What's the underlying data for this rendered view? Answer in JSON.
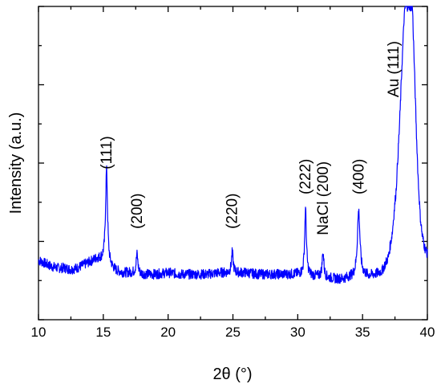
{
  "chart_data": {
    "type": "line",
    "xlabel": "2θ (°)",
    "ylabel": "Intensity (a.u.)",
    "xlim": [
      10,
      40
    ],
    "ylim": [
      0,
      100
    ],
    "xticks": [
      "10",
      "15",
      "20",
      "25",
      "30",
      "35",
      "40"
    ],
    "y_tick_labels": false,
    "grid": false,
    "legend": "none",
    "line_color": "#0000ff",
    "baseline_points": [
      [
        10.0,
        19
      ],
      [
        10.5,
        18
      ],
      [
        11.0,
        17
      ],
      [
        11.5,
        16.5
      ],
      [
        12.0,
        16.5
      ],
      [
        12.5,
        16
      ],
      [
        13.0,
        16.5
      ],
      [
        13.5,
        17.5
      ],
      [
        14.0,
        18.5
      ],
      [
        14.5,
        19.5
      ],
      [
        15.0,
        19
      ],
      [
        15.5,
        17
      ],
      [
        16.0,
        15.5
      ],
      [
        16.5,
        15
      ],
      [
        17.0,
        15
      ],
      [
        17.5,
        15
      ],
      [
        18.0,
        14.5
      ],
      [
        19.0,
        14.5
      ],
      [
        20.0,
        15
      ],
      [
        21.0,
        14.5
      ],
      [
        22.0,
        14.5
      ],
      [
        23.0,
        14.5
      ],
      [
        24.0,
        15
      ],
      [
        25.0,
        15
      ],
      [
        26.0,
        15
      ],
      [
        27.0,
        14.5
      ],
      [
        28.0,
        14.5
      ],
      [
        29.0,
        14.5
      ],
      [
        30.0,
        14.5
      ],
      [
        31.0,
        14
      ],
      [
        32.0,
        13.5
      ],
      [
        33.0,
        13
      ],
      [
        33.5,
        13
      ],
      [
        34.0,
        13.5
      ],
      [
        35.0,
        14
      ],
      [
        35.5,
        14
      ],
      [
        36.0,
        14.5
      ],
      [
        36.5,
        15.5
      ],
      [
        37.0,
        20
      ],
      [
        37.3,
        28
      ],
      [
        37.6,
        42
      ],
      [
        37.85,
        62
      ],
      [
        38.05,
        82
      ],
      [
        38.2,
        96
      ],
      [
        38.3,
        100
      ],
      [
        38.5,
        100
      ],
      [
        38.7,
        100
      ],
      [
        38.85,
        100
      ],
      [
        39.0,
        80
      ],
      [
        39.15,
        60
      ],
      [
        39.3,
        44
      ],
      [
        39.45,
        33
      ],
      [
        39.6,
        27
      ],
      [
        39.8,
        23
      ],
      [
        40.0,
        21
      ]
    ],
    "peaks": [
      {
        "x": 15.25,
        "height": 30,
        "width": 0.09
      },
      {
        "x": 17.6,
        "height": 6,
        "width": 0.08
      },
      {
        "x": 24.95,
        "height": 6.5,
        "width": 0.08
      },
      {
        "x": 30.6,
        "height": 21,
        "width": 0.08
      },
      {
        "x": 31.95,
        "height": 8,
        "width": 0.08
      },
      {
        "x": 34.7,
        "height": 21,
        "width": 0.12
      }
    ],
    "noise_amplitude": 1.6,
    "annotations": [
      {
        "text": "(111)",
        "x": 15.25,
        "y": 48
      },
      {
        "text": "(200)",
        "x": 17.6,
        "y": 29
      },
      {
        "text": "(220)",
        "x": 24.95,
        "y": 29
      },
      {
        "text": "(222)",
        "x": 30.6,
        "y": 40
      },
      {
        "text": "NaCl (200)",
        "x": 31.95,
        "y": 27
      },
      {
        "text": "(400)",
        "x": 34.7,
        "y": 40
      },
      {
        "text": "Au (111)",
        "x": 37.4,
        "y": 71
      }
    ]
  }
}
